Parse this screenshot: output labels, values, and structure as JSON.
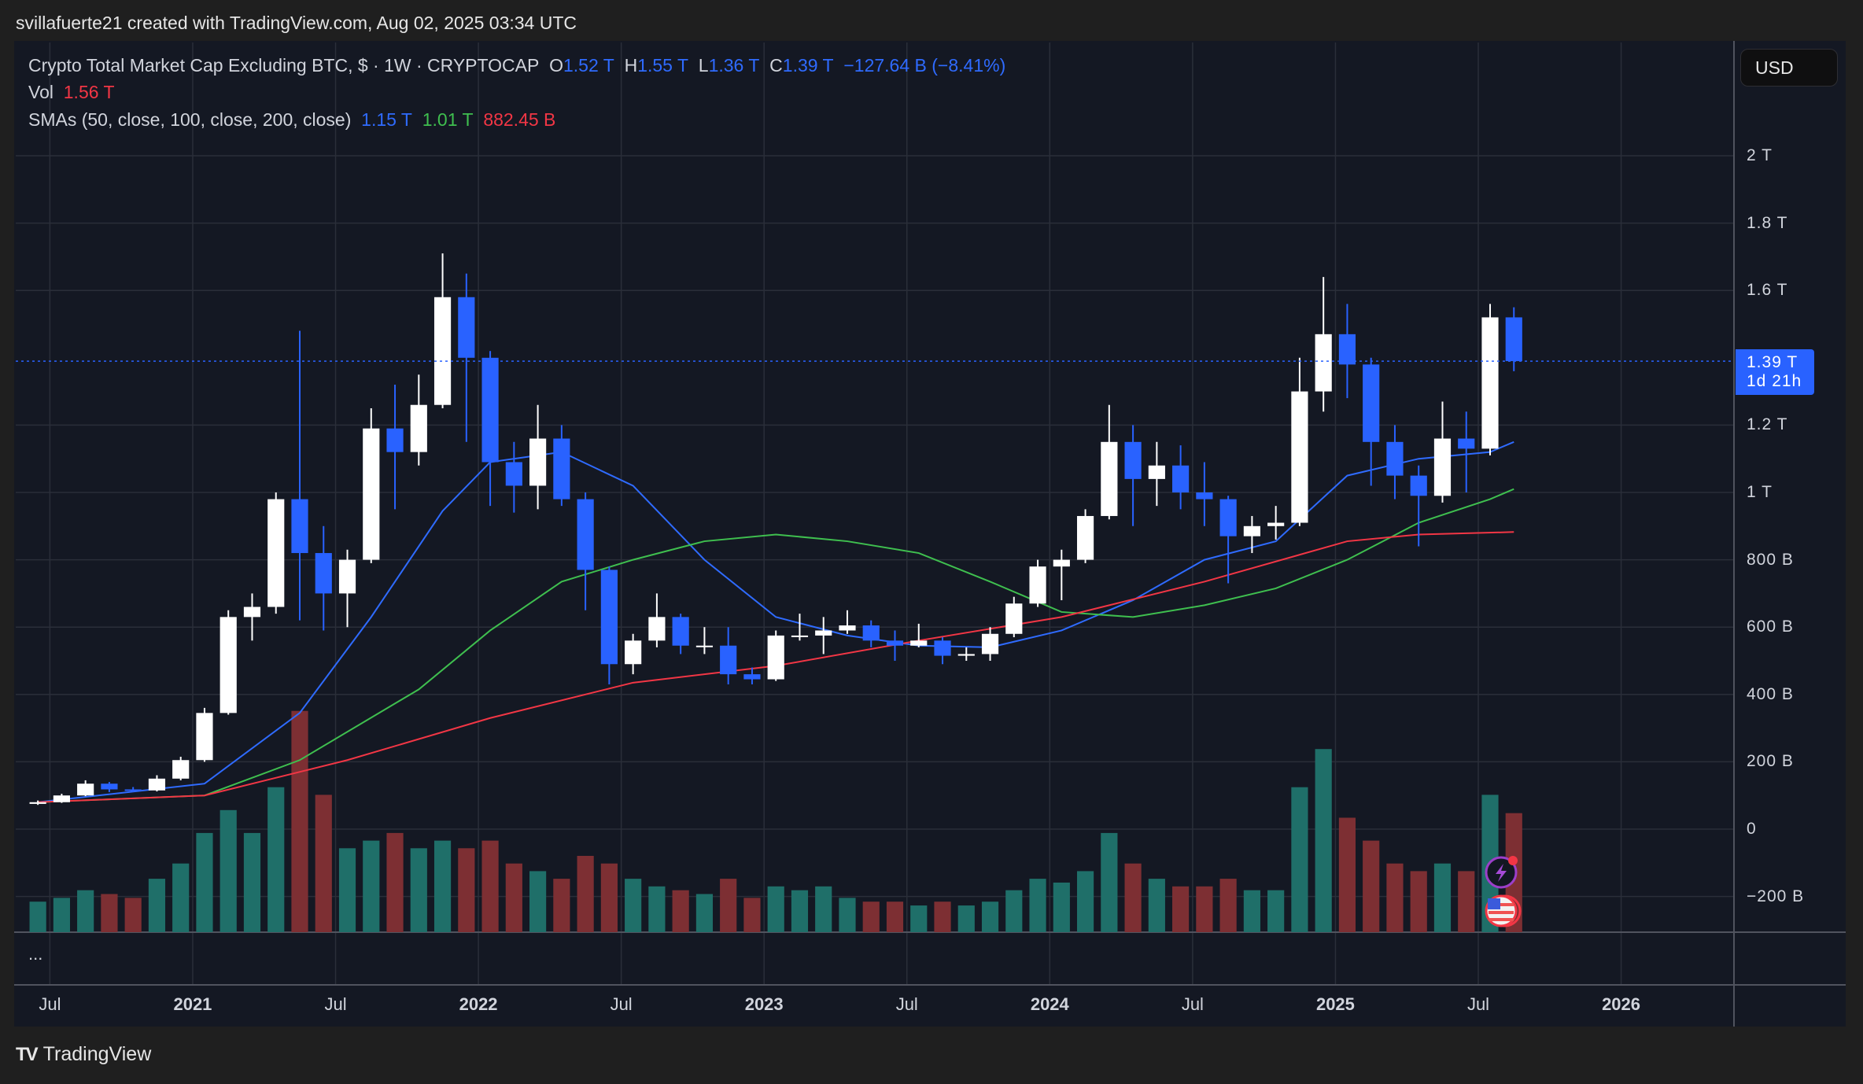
{
  "credit": "svillafuerte21 created with TradingView.com, Aug 02, 2025 03:34 UTC",
  "legend": {
    "symbol": "Crypto Total Market Cap Excluding BTC, $ · 1W · CRYPTOCAP",
    "o_label": "O",
    "o": "1.52 T",
    "h_label": "H",
    "h": "1.55 T",
    "l_label": "L",
    "l": "1.36 T",
    "c_label": "C",
    "c": "1.39 T",
    "change": "−127.64 B (−8.41%)",
    "vol_label": "Vol",
    "vol": "1.56 T",
    "sma_label": "SMAs (50, close, 100, close, 200, close)",
    "sma50": "1.15 T",
    "sma100": "1.01 T",
    "sma200": "882.45 B"
  },
  "currency_button": "USD",
  "price_tag": {
    "price": "1.39 T",
    "countdown": "1d 21h"
  },
  "more_label": "...",
  "footer_logo": "TradingView",
  "icons": [
    "lightning-event-icon",
    "us-flag-economic-event-icon"
  ],
  "colors": {
    "up": "#ffffff",
    "down": "#2962ff",
    "sma50": "#2f6bff",
    "sma100": "#3fbf4f",
    "sma200": "#f23645",
    "vol_up": "#1f6f69",
    "vol_down": "#7d2f33",
    "background": "#141823"
  },
  "chart_data": {
    "type": "candlestick",
    "title": "Crypto Total Market Cap Excluding BTC, $ · 1W · CRYPTOCAP",
    "unit": "B USD",
    "y_ticks": [
      "2 T",
      "1.8 T",
      "1.6 T",
      "1.2 T",
      "1 T",
      "800 B",
      "600 B",
      "400 B",
      "200 B",
      "0",
      "−200 B"
    ],
    "y_tick_values": [
      2000,
      1800,
      1600,
      1200,
      1000,
      800,
      600,
      400,
      200,
      0,
      -200
    ],
    "ylim": [
      -300,
      2200
    ],
    "x_ticks": [
      {
        "label": "Jul",
        "date": "2020-07",
        "year": false
      },
      {
        "label": "2021",
        "date": "2021-01",
        "year": true
      },
      {
        "label": "Jul",
        "date": "2021-07",
        "year": false
      },
      {
        "label": "2022",
        "date": "2022-01",
        "year": true
      },
      {
        "label": "Jul",
        "date": "2022-07",
        "year": false
      },
      {
        "label": "2023",
        "date": "2023-01",
        "year": true
      },
      {
        "label": "Jul",
        "date": "2023-07",
        "year": false
      },
      {
        "label": "2024",
        "date": "2024-01",
        "year": true
      },
      {
        "label": "Jul",
        "date": "2024-07",
        "year": false
      },
      {
        "label": "2025",
        "date": "2025-01",
        "year": true
      },
      {
        "label": "Jul",
        "date": "2025-07",
        "year": false
      },
      {
        "label": "2026",
        "date": "2026-01",
        "year": true
      }
    ],
    "last_price": 1390,
    "grid": true,
    "candles_columns": [
      "date",
      "open",
      "high",
      "low",
      "close",
      "volume_T"
    ],
    "candles": [
      [
        "2020-06",
        75,
        85,
        72,
        80,
        0.4
      ],
      [
        "2020-07",
        80,
        105,
        78,
        100,
        0.45
      ],
      [
        "2020-08",
        100,
        145,
        98,
        135,
        0.55
      ],
      [
        "2020-09",
        135,
        140,
        110,
        118,
        0.5
      ],
      [
        "2020-10",
        118,
        125,
        110,
        115,
        0.45
      ],
      [
        "2020-11",
        115,
        160,
        112,
        150,
        0.7
      ],
      [
        "2020-12",
        150,
        215,
        145,
        205,
        0.9
      ],
      [
        "2021-01",
        205,
        360,
        200,
        345,
        1.3
      ],
      [
        "2021-02",
        345,
        650,
        340,
        630,
        1.6
      ],
      [
        "2021-03",
        630,
        700,
        560,
        660,
        1.3
      ],
      [
        "2021-04",
        660,
        1000,
        640,
        980,
        1.9
      ],
      [
        "2021-05",
        980,
        1480,
        620,
        820,
        2.9
      ],
      [
        "2021-06",
        820,
        900,
        590,
        700,
        1.8
      ],
      [
        "2021-07",
        700,
        830,
        600,
        800,
        1.1
      ],
      [
        "2021-08",
        800,
        1250,
        790,
        1190,
        1.2
      ],
      [
        "2021-09",
        1190,
        1320,
        950,
        1120,
        1.3
      ],
      [
        "2021-10",
        1120,
        1350,
        1080,
        1260,
        1.1
      ],
      [
        "2021-11",
        1260,
        1710,
        1250,
        1580,
        1.2
      ],
      [
        "2021-12",
        1580,
        1650,
        1150,
        1400,
        1.1
      ],
      [
        "2022-01",
        1400,
        1420,
        960,
        1090,
        1.2
      ],
      [
        "2022-02",
        1090,
        1150,
        940,
        1020,
        0.9
      ],
      [
        "2022-03",
        1020,
        1260,
        950,
        1160,
        0.8
      ],
      [
        "2022-04",
        1160,
        1200,
        960,
        980,
        0.7
      ],
      [
        "2022-05",
        980,
        1000,
        650,
        770,
        1.0
      ],
      [
        "2022-06",
        770,
        780,
        430,
        490,
        0.9
      ],
      [
        "2022-07",
        490,
        580,
        460,
        560,
        0.7
      ],
      [
        "2022-08",
        560,
        700,
        540,
        630,
        0.6
      ],
      [
        "2022-09",
        630,
        640,
        520,
        545,
        0.55
      ],
      [
        "2022-10",
        545,
        600,
        520,
        545,
        0.5
      ],
      [
        "2022-11",
        545,
        600,
        430,
        460,
        0.7
      ],
      [
        "2022-12",
        460,
        480,
        430,
        445,
        0.45
      ],
      [
        "2023-01",
        445,
        590,
        440,
        575,
        0.6
      ],
      [
        "2023-02",
        575,
        640,
        560,
        575,
        0.55
      ],
      [
        "2023-03",
        575,
        630,
        520,
        590,
        0.6
      ],
      [
        "2023-04",
        590,
        650,
        580,
        605,
        0.45
      ],
      [
        "2023-05",
        605,
        620,
        540,
        560,
        0.4
      ],
      [
        "2023-06",
        560,
        590,
        500,
        545,
        0.4
      ],
      [
        "2023-07",
        545,
        610,
        540,
        560,
        0.35
      ],
      [
        "2023-08",
        560,
        570,
        490,
        515,
        0.4
      ],
      [
        "2023-09",
        515,
        540,
        500,
        520,
        0.35
      ],
      [
        "2023-10",
        520,
        600,
        500,
        580,
        0.4
      ],
      [
        "2023-11",
        580,
        690,
        570,
        670,
        0.55
      ],
      [
        "2023-12",
        670,
        800,
        660,
        780,
        0.7
      ],
      [
        "2024-01",
        780,
        830,
        680,
        800,
        0.65
      ],
      [
        "2024-02",
        800,
        950,
        790,
        930,
        0.8
      ],
      [
        "2024-03",
        930,
        1260,
        920,
        1150,
        1.3
      ],
      [
        "2024-04",
        1150,
        1200,
        900,
        1040,
        0.9
      ],
      [
        "2024-05",
        1040,
        1150,
        960,
        1080,
        0.7
      ],
      [
        "2024-06",
        1080,
        1140,
        950,
        1000,
        0.6
      ],
      [
        "2024-07",
        1000,
        1090,
        900,
        980,
        0.6
      ],
      [
        "2024-08",
        980,
        990,
        730,
        870,
        0.7
      ],
      [
        "2024-09",
        870,
        930,
        820,
        900,
        0.55
      ],
      [
        "2024-10",
        900,
        960,
        860,
        910,
        0.55
      ],
      [
        "2024-11",
        910,
        1400,
        900,
        1300,
        1.9
      ],
      [
        "2024-12",
        1300,
        1640,
        1240,
        1470,
        2.4
      ],
      [
        "2025-01",
        1470,
        1560,
        1280,
        1380,
        1.5
      ],
      [
        "2025-02",
        1380,
        1400,
        1020,
        1150,
        1.2
      ],
      [
        "2025-03",
        1150,
        1200,
        980,
        1050,
        0.9
      ],
      [
        "2025-04",
        1050,
        1080,
        840,
        990,
        0.8
      ],
      [
        "2025-05",
        990,
        1270,
        970,
        1160,
        0.9
      ],
      [
        "2025-06",
        1160,
        1240,
        1000,
        1130,
        0.8
      ],
      [
        "2025-07",
        1130,
        1560,
        1110,
        1520,
        1.8
      ],
      [
        "2025-08",
        1520,
        1550,
        1360,
        1390,
        1.56
      ]
    ],
    "series": [
      {
        "name": "SMA 50",
        "points": [
          [
            "2020-06",
            80
          ],
          [
            "2021-01",
            135
          ],
          [
            "2021-05",
            345
          ],
          [
            "2021-08",
            630
          ],
          [
            "2021-11",
            945
          ],
          [
            "2022-01",
            1090
          ],
          [
            "2022-04",
            1120
          ],
          [
            "2022-07",
            1020
          ],
          [
            "2022-10",
            800
          ],
          [
            "2023-01",
            630
          ],
          [
            "2023-04",
            575
          ],
          [
            "2023-07",
            545
          ],
          [
            "2023-10",
            540
          ],
          [
            "2024-01",
            590
          ],
          [
            "2024-04",
            680
          ],
          [
            "2024-07",
            800
          ],
          [
            "2024-10",
            855
          ],
          [
            "2025-01",
            1050
          ],
          [
            "2025-04",
            1100
          ],
          [
            "2025-07",
            1120
          ],
          [
            "2025-08",
            1150
          ]
        ]
      },
      {
        "name": "SMA 100",
        "points": [
          [
            "2020-06",
            80
          ],
          [
            "2021-01",
            100
          ],
          [
            "2021-05",
            205
          ],
          [
            "2021-10",
            415
          ],
          [
            "2022-01",
            590
          ],
          [
            "2022-04",
            735
          ],
          [
            "2022-07",
            800
          ],
          [
            "2022-10",
            855
          ],
          [
            "2023-01",
            875
          ],
          [
            "2023-04",
            855
          ],
          [
            "2023-07",
            820
          ],
          [
            "2023-10",
            735
          ],
          [
            "2024-01",
            645
          ],
          [
            "2024-04",
            630
          ],
          [
            "2024-07",
            665
          ],
          [
            "2024-10",
            715
          ],
          [
            "2025-01",
            800
          ],
          [
            "2025-04",
            910
          ],
          [
            "2025-07",
            980
          ],
          [
            "2025-08",
            1010
          ]
        ]
      },
      {
        "name": "SMA 200",
        "points": [
          [
            "2020-06",
            80
          ],
          [
            "2021-01",
            100
          ],
          [
            "2021-07",
            205
          ],
          [
            "2022-01",
            330
          ],
          [
            "2022-07",
            435
          ],
          [
            "2023-01",
            485
          ],
          [
            "2023-07",
            560
          ],
          [
            "2024-01",
            630
          ],
          [
            "2024-07",
            735
          ],
          [
            "2025-01",
            855
          ],
          [
            "2025-04",
            875
          ],
          [
            "2025-08",
            882.45
          ]
        ]
      }
    ]
  }
}
